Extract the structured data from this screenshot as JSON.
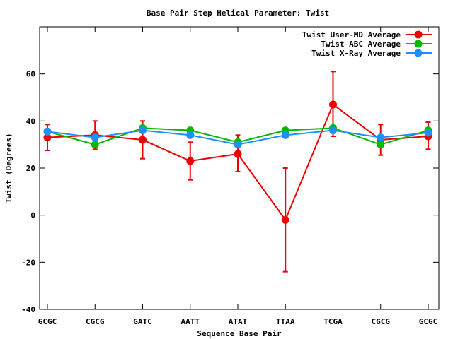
{
  "chart_data": {
    "type": "line",
    "title": "Base Pair Step Helical Parameter: Twist",
    "xlabel": "Sequence Base Pair",
    "ylabel": "Twist (Degrees)",
    "categories": [
      "GCGC",
      "CGCG",
      "GATC",
      "AATT",
      "ATAT",
      "TTAA",
      "TCGA",
      "CGCG",
      "GCGC"
    ],
    "ylim": [
      -40,
      80
    ],
    "yticks": [
      -40,
      -20,
      0,
      20,
      40,
      60
    ],
    "legend_position": "top-right",
    "grid": false,
    "series": [
      {
        "name": "Twist User-MD Average",
        "color": "#ee0000",
        "values": [
          33,
          34,
          32,
          23,
          26,
          -2,
          47,
          32,
          33.5
        ],
        "error_low": [
          27.5,
          28,
          24,
          15,
          18.5,
          -24,
          33.5,
          25.5,
          28
        ],
        "error_high": [
          38.5,
          40,
          40,
          31,
          34,
          20,
          61,
          38.5,
          39.5
        ]
      },
      {
        "name": "Twist ABC Average",
        "color": "#00bb00",
        "values": [
          35.5,
          30,
          37,
          36,
          31,
          36,
          37,
          30,
          36
        ]
      },
      {
        "name": "Twist X-Ray Average",
        "color": "#1f8fff",
        "values": [
          35.5,
          33,
          36,
          34,
          30,
          34,
          36,
          33,
          35
        ]
      }
    ]
  }
}
